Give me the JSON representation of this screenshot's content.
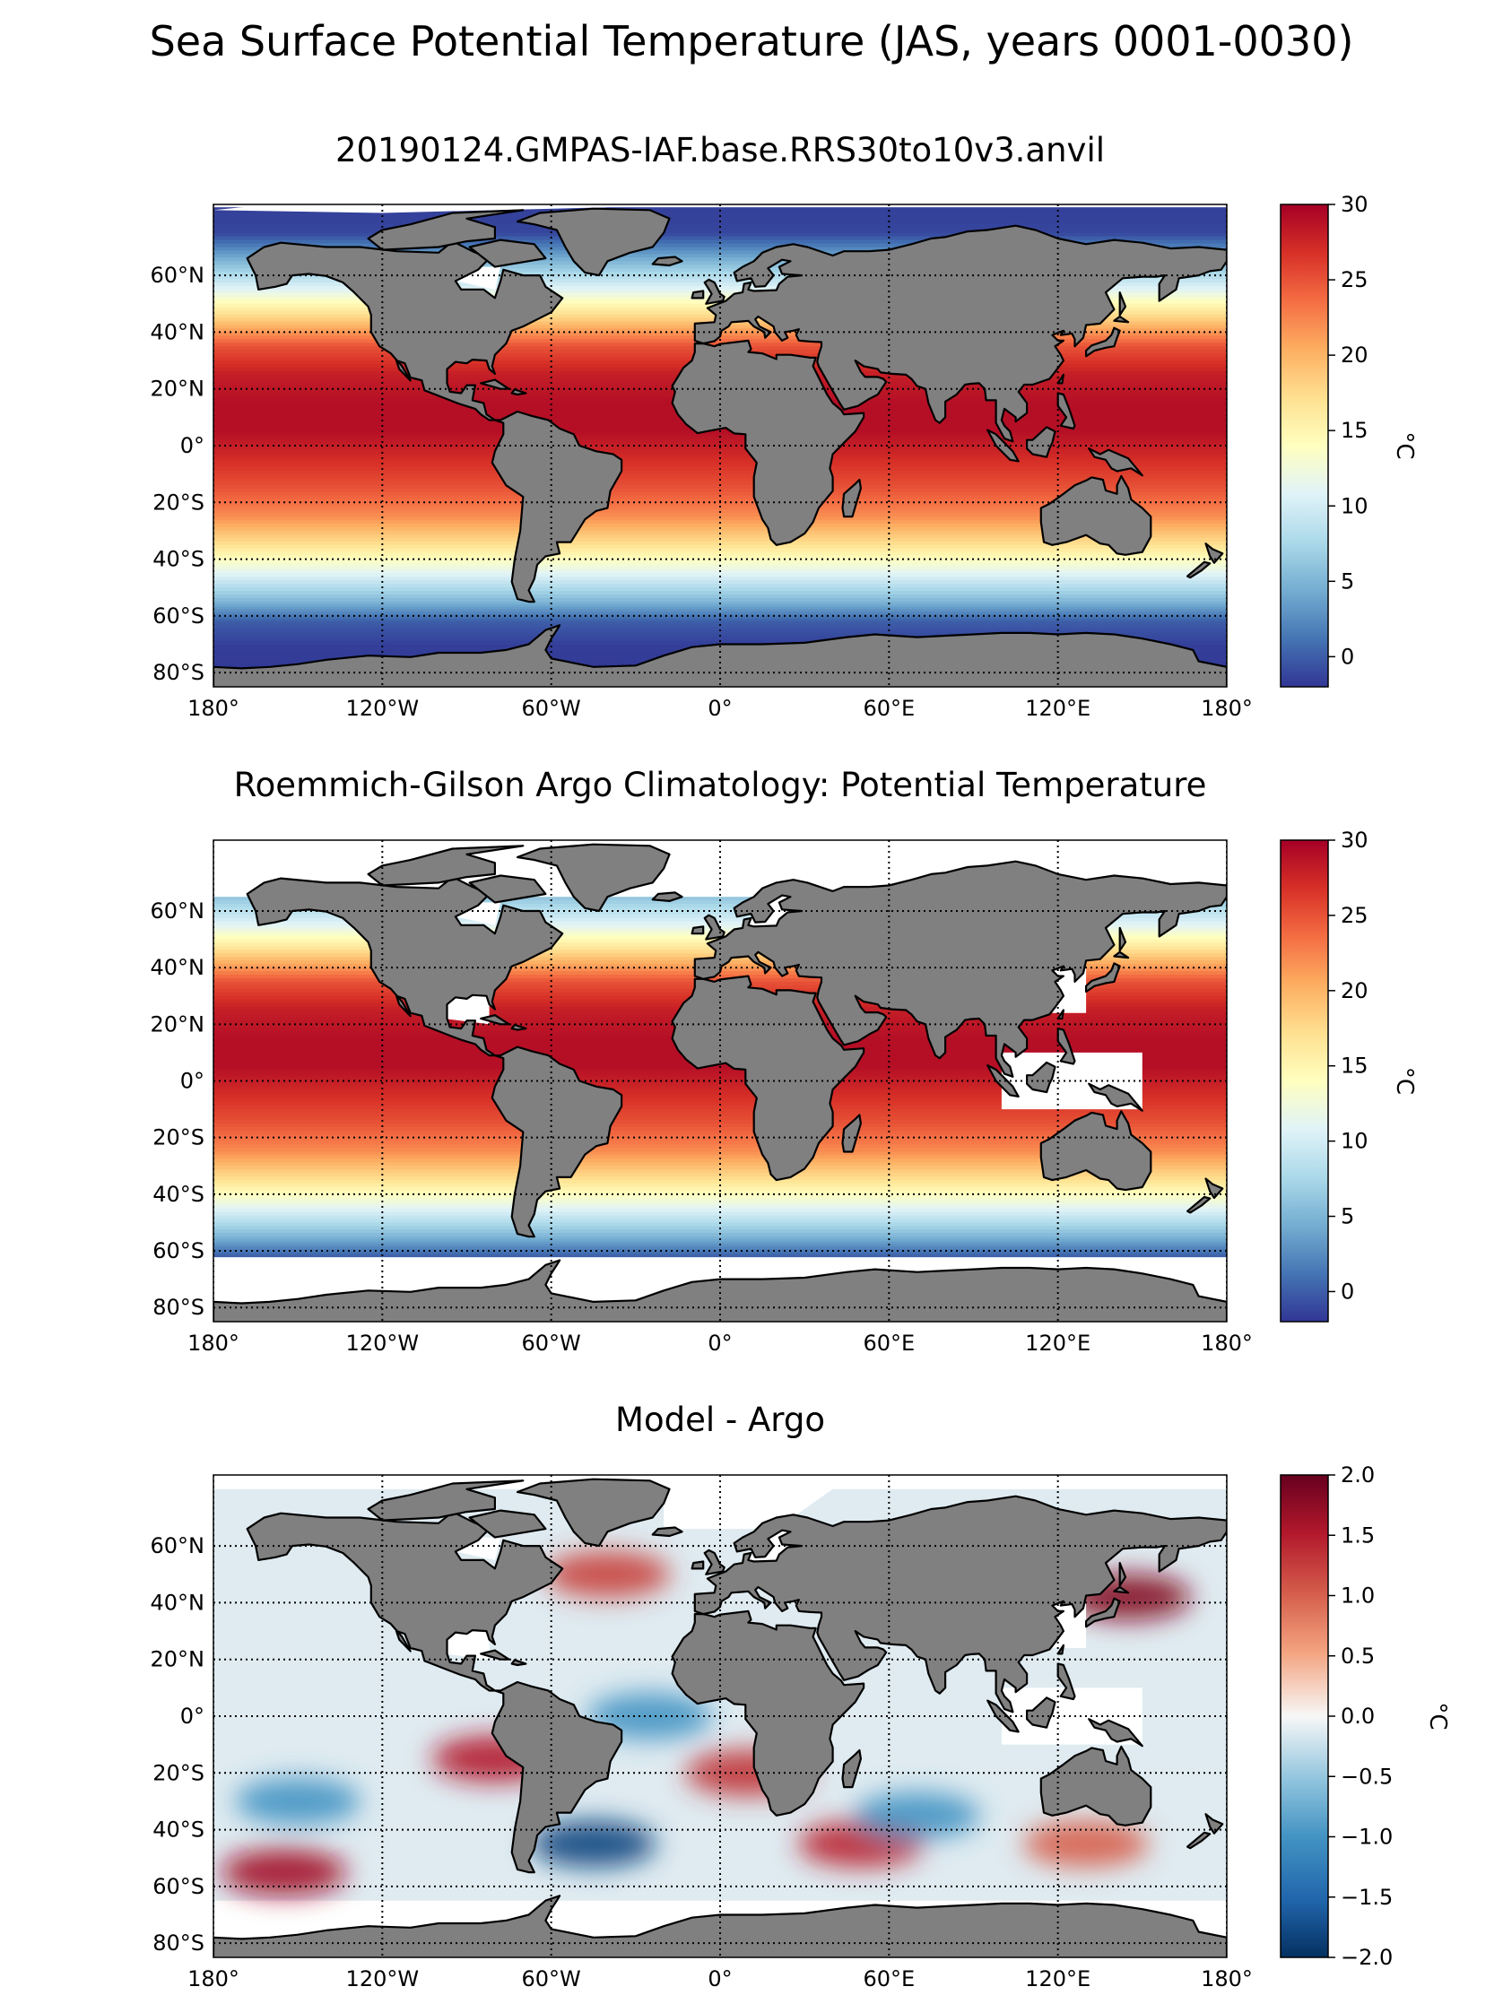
{
  "title": "Sea Surface Potential Temperature (JAS, years 0001-0030)",
  "chart_data": [
    {
      "type": "heatmap",
      "title": "20190124.GMPAS-IAF.base.RRS30to10v3.anvil",
      "projection": "equirectangular",
      "xlim": [
        -180,
        180
      ],
      "ylim": [
        -85,
        85
      ],
      "xticks": [
        -180,
        -120,
        -60,
        0,
        60,
        120,
        180
      ],
      "xtick_labels": [
        "180°",
        "120°W",
        "60°W",
        "0°",
        "60°E",
        "120°E",
        "180°"
      ],
      "yticks": [
        60,
        40,
        20,
        0,
        -20,
        -40,
        -60,
        -80
      ],
      "ytick_labels": [
        "60°N",
        "40°N",
        "20°N",
        "0°",
        "20°S",
        "40°S",
        "60°S",
        "80°S"
      ],
      "grid": true,
      "colormap": "RdYlBu_r",
      "colorbar": {
        "label": "°C",
        "range": [
          -2,
          30
        ],
        "ticks": [
          30,
          25,
          20,
          15,
          10,
          5,
          0
        ],
        "tick_labels": [
          "30",
          "25",
          "20",
          "15",
          "10",
          "5",
          "0"
        ]
      },
      "zonal_profile": {
        "lat": [
          84,
          75,
          65,
          55,
          45,
          35,
          25,
          15,
          5,
          0,
          -5,
          -15,
          -25,
          -35,
          -45,
          -55,
          -62,
          -70,
          -78
        ],
        "value": [
          -1.5,
          -1.2,
          5,
          11,
          18,
          25,
          28,
          29,
          29,
          28,
          27,
          25,
          22,
          17,
          11,
          5,
          0,
          -1.5,
          -1.8
        ]
      },
      "land_color": "#808080",
      "missing_color": "#ffffff",
      "obs_ice_limit_lat": -85
    },
    {
      "type": "heatmap",
      "title": "Roemmich-Gilson Argo Climatology: Potential Temperature",
      "projection": "equirectangular",
      "xlim": [
        -180,
        180
      ],
      "ylim": [
        -85,
        85
      ],
      "xticks": [
        -180,
        -120,
        -60,
        0,
        60,
        120,
        180
      ],
      "xtick_labels": [
        "180°",
        "120°W",
        "60°W",
        "0°",
        "60°E",
        "120°E",
        "180°"
      ],
      "yticks": [
        60,
        40,
        20,
        0,
        -20,
        -40,
        -60,
        -80
      ],
      "ytick_labels": [
        "60°N",
        "40°N",
        "20°N",
        "0°",
        "20°S",
        "40°S",
        "60°S",
        "80°S"
      ],
      "grid": true,
      "colormap": "RdYlBu_r",
      "colorbar": {
        "label": "°C",
        "range": [
          -2,
          30
        ],
        "ticks": [
          30,
          25,
          20,
          15,
          10,
          5,
          0
        ],
        "tick_labels": [
          "30",
          "25",
          "20",
          "15",
          "10",
          "5",
          "0"
        ]
      },
      "zonal_profile": {
        "lat": [
          84,
          75,
          65,
          55,
          45,
          35,
          25,
          15,
          5,
          0,
          -5,
          -15,
          -25,
          -35,
          -45,
          -55,
          -62,
          -70,
          -78
        ],
        "value": [
          null,
          null,
          6,
          11,
          18,
          25,
          28,
          29,
          29,
          28,
          27,
          25,
          22,
          17,
          11,
          5,
          0,
          null,
          null
        ]
      },
      "land_color": "#808080",
      "missing_color": "#ffffff",
      "data_lat_range": [
        -65,
        80
      ]
    },
    {
      "type": "heatmap",
      "title": "Model - Argo",
      "projection": "equirectangular",
      "xlim": [
        -180,
        180
      ],
      "ylim": [
        -85,
        85
      ],
      "xticks": [
        -180,
        -120,
        -60,
        0,
        60,
        120,
        180
      ],
      "xtick_labels": [
        "180°",
        "120°W",
        "60°W",
        "0°",
        "60°E",
        "120°E",
        "180°"
      ],
      "yticks": [
        60,
        40,
        20,
        0,
        -20,
        -40,
        -60,
        -80
      ],
      "ytick_labels": [
        "60°N",
        "40°N",
        "20°N",
        "0°",
        "20°S",
        "40°S",
        "60°S",
        "80°S"
      ],
      "grid": true,
      "colormap": "RdBu_r",
      "colorbar": {
        "label": "°C",
        "range": [
          -2,
          2
        ],
        "ticks": [
          2.0,
          1.5,
          1.0,
          0.5,
          0.0,
          -0.5,
          -1.0,
          -1.5,
          -2.0
        ],
        "tick_labels": [
          "2.0",
          "1.5",
          "1.0",
          "0.5",
          "0.0",
          "−0.5",
          "−1.0",
          "−1.5",
          "−2.0"
        ]
      },
      "anomalies": [
        {
          "lon": 145,
          "lat": 42,
          "value": 1.8
        },
        {
          "lon": -80,
          "lat": -15,
          "value": 1.5
        },
        {
          "lon": 10,
          "lat": -20,
          "value": 1.3
        },
        {
          "lon": -45,
          "lat": -45,
          "value": -1.8
        },
        {
          "lon": -155,
          "lat": -55,
          "value": 1.6
        },
        {
          "lon": 50,
          "lat": -45,
          "value": 1.4
        },
        {
          "lon": -150,
          "lat": -30,
          "value": -1.0
        },
        {
          "lon": 70,
          "lat": -35,
          "value": -1.0
        },
        {
          "lon": -40,
          "lat": 50,
          "value": 1.2
        },
        {
          "lon": 130,
          "lat": -45,
          "value": 1.0
        },
        {
          "lon": -25,
          "lat": 0,
          "value": -1.0
        }
      ],
      "land_color": "#808080",
      "missing_color": "#ffffff",
      "data_lat_range": [
        -65,
        80
      ]
    }
  ]
}
